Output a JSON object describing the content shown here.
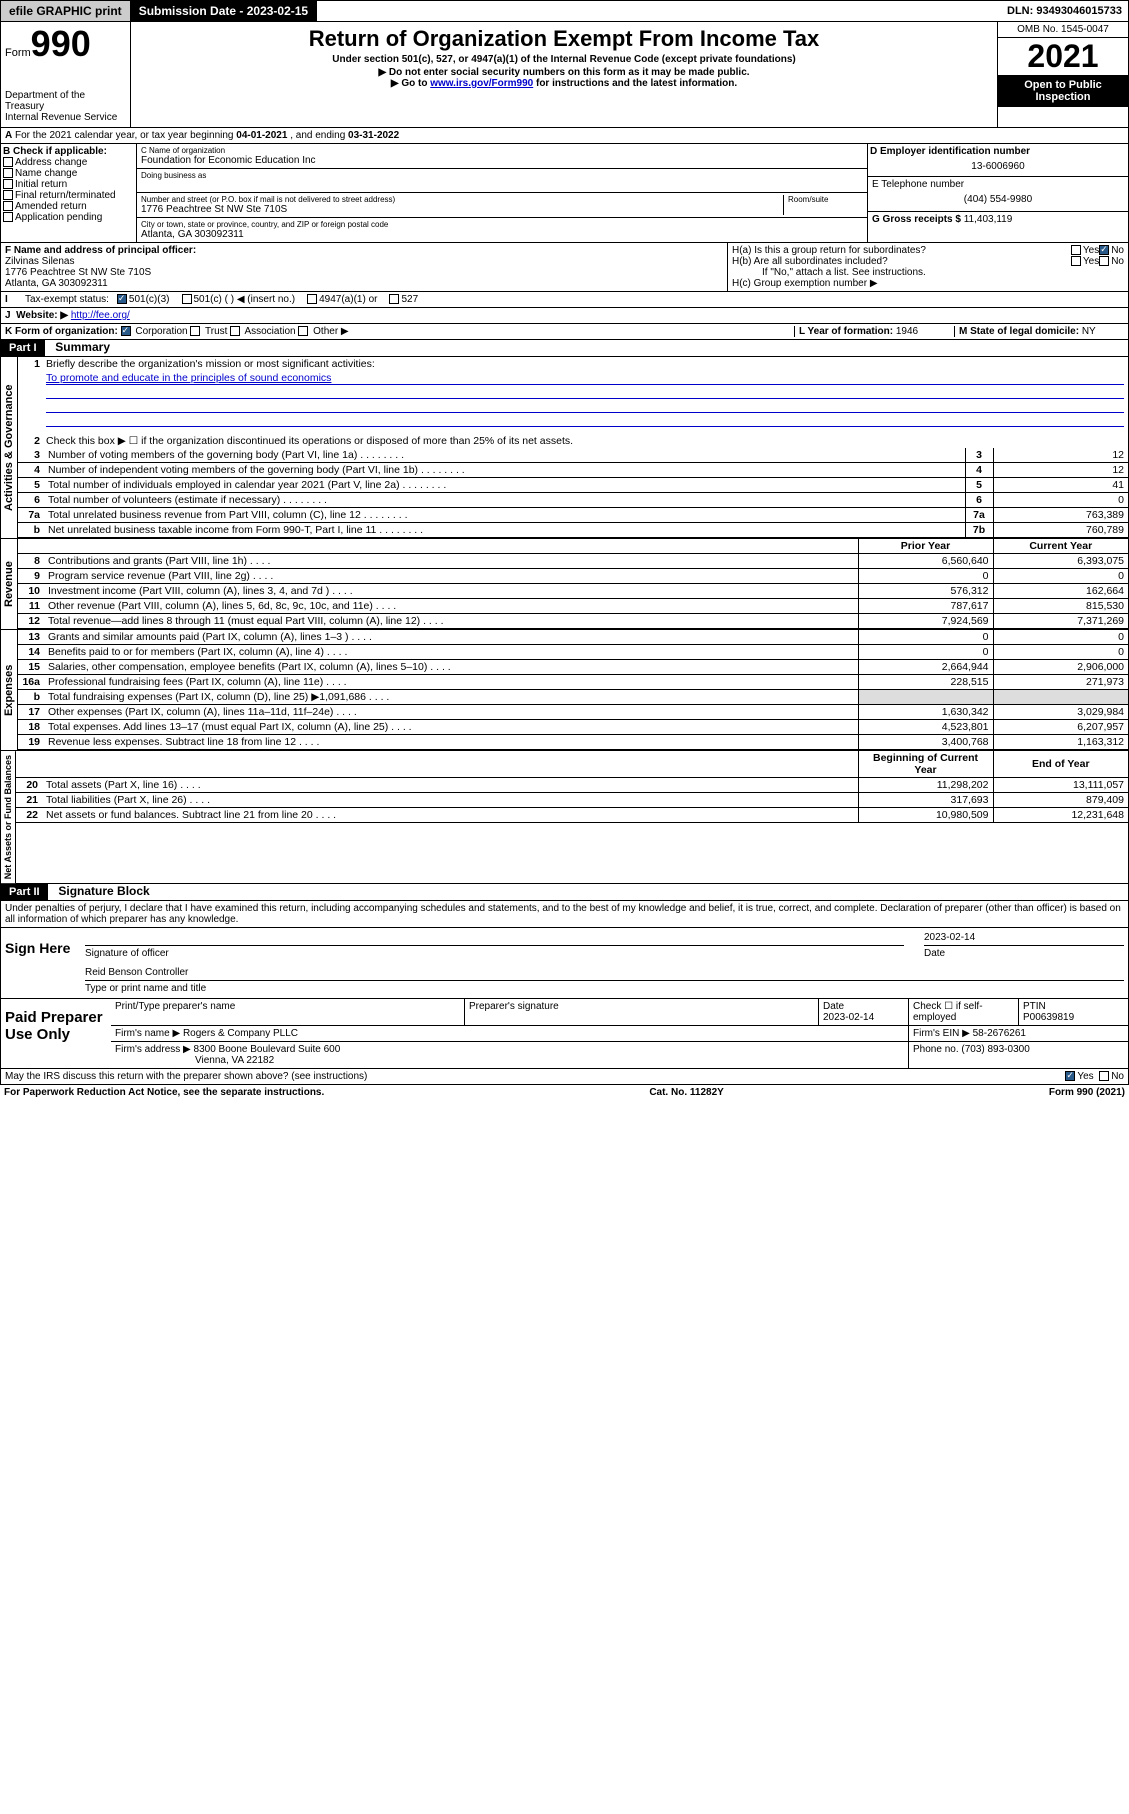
{
  "top": {
    "efile": "efile GRAPHIC print",
    "sub_label": "Submission Date - ",
    "sub_date": "2023-02-15",
    "dln": "DLN: 93493046015733"
  },
  "header": {
    "form_prefix": "Form",
    "form_no": "990",
    "dept": "Department of the Treasury\nInternal Revenue Service",
    "title": "Return of Organization Exempt From Income Tax",
    "sub": "Under section 501(c), 527, or 4947(a)(1) of the Internal Revenue Code (except private foundations)",
    "inst1": "▶ Do not enter social security numbers on this form as it may be made public.",
    "inst2_pre": "▶ Go to ",
    "inst2_link": "www.irs.gov/Form990",
    "inst2_post": " for instructions and the latest information.",
    "omb": "OMB No. 1545-0047",
    "year": "2021",
    "inspect": "Open to Public Inspection"
  },
  "a": {
    "text": "For the 2021 calendar year, or tax year beginning ",
    "begin": "04-01-2021",
    "mid": " , and ending ",
    "end": "03-31-2022"
  },
  "b": {
    "label": "B Check if applicable:",
    "opts": [
      "Address change",
      "Name change",
      "Initial return",
      "Final return/terminated",
      "Amended return",
      "Application pending"
    ]
  },
  "c": {
    "name_label": "C Name of organization",
    "name": "Foundation for Economic Education Inc",
    "dba_label": "Doing business as",
    "street_label": "Number and street (or P.O. box if mail is not delivered to street address)",
    "room_label": "Room/suite",
    "street": "1776 Peachtree St NW Ste 710S",
    "city_label": "City or town, state or province, country, and ZIP or foreign postal code",
    "city": "Atlanta, GA  303092311"
  },
  "d": {
    "label": "D Employer identification number",
    "val": "13-6006960"
  },
  "e": {
    "label": "E Telephone number",
    "val": "(404) 554-9980"
  },
  "f": {
    "label": "F Name and address of principal officer:",
    "name": "Zilvinas Silenas",
    "addr1": "1776 Peachtree St NW Ste 710S",
    "addr2": "Atlanta, GA  303092311"
  },
  "g": {
    "label": "G Gross receipts $ ",
    "val": "11,403,119"
  },
  "h": {
    "a": "H(a)  Is this a group return for subordinates?",
    "b": "H(b)  Are all subordinates included?",
    "b_note": "If \"No,\" attach a list. See instructions.",
    "c": "H(c)  Group exemption number ▶",
    "yes": "Yes",
    "no": "No"
  },
  "i": {
    "label": "Tax-exempt status:",
    "o1": "501(c)(3)",
    "o2": "501(c) (  ) ◀ (insert no.)",
    "o3": "4947(a)(1) or",
    "o4": "527"
  },
  "j": {
    "label": "Website: ▶ ",
    "val": "http://fee.org/"
  },
  "k": {
    "label": "K Form of organization:",
    "o1": "Corporation",
    "o2": "Trust",
    "o3": "Association",
    "o4": "Other ▶"
  },
  "l": {
    "label": "L Year of formation: ",
    "val": "1946"
  },
  "m": {
    "label": "M State of legal domicile: ",
    "val": "NY"
  },
  "part1": {
    "hdr": "Part I",
    "title": "Summary",
    "l1": "Briefly describe the organization's mission or most significant activities:",
    "l1_val": "To promote and educate in the principles of sound economics",
    "l2": "Check this box ▶ ☐  if the organization discontinued its operations or disposed of more than 25% of its net assets.",
    "rows_top": [
      {
        "n": "3",
        "t": "Number of voting members of the governing body (Part VI, line 1a)",
        "box": "3",
        "v": "12"
      },
      {
        "n": "4",
        "t": "Number of independent voting members of the governing body (Part VI, line 1b)",
        "box": "4",
        "v": "12"
      },
      {
        "n": "5",
        "t": "Total number of individuals employed in calendar year 2021 (Part V, line 2a)",
        "box": "5",
        "v": "41"
      },
      {
        "n": "6",
        "t": "Total number of volunteers (estimate if necessary)",
        "box": "6",
        "v": "0"
      },
      {
        "n": "7a",
        "t": "Total unrelated business revenue from Part VIII, column (C), line 12",
        "box": "7a",
        "v": "763,389"
      },
      {
        "n": "b",
        "t": "Net unrelated business taxable income from Form 990-T, Part I, line 11",
        "box": "7b",
        "v": "760,789"
      }
    ],
    "col_prior": "Prior Year",
    "col_current": "Current Year",
    "col_begin": "Beginning of Current Year",
    "col_end": "End of Year",
    "revenue": [
      {
        "n": "8",
        "t": "Contributions and grants (Part VIII, line 1h)",
        "p": "6,560,640",
        "c": "6,393,075"
      },
      {
        "n": "9",
        "t": "Program service revenue (Part VIII, line 2g)",
        "p": "0",
        "c": "0"
      },
      {
        "n": "10",
        "t": "Investment income (Part VIII, column (A), lines 3, 4, and 7d )",
        "p": "576,312",
        "c": "162,664"
      },
      {
        "n": "11",
        "t": "Other revenue (Part VIII, column (A), lines 5, 6d, 8c, 9c, 10c, and 11e)",
        "p": "787,617",
        "c": "815,530"
      },
      {
        "n": "12",
        "t": "Total revenue—add lines 8 through 11 (must equal Part VIII, column (A), line 12)",
        "p": "7,924,569",
        "c": "7,371,269"
      }
    ],
    "expenses": [
      {
        "n": "13",
        "t": "Grants and similar amounts paid (Part IX, column (A), lines 1–3 )",
        "p": "0",
        "c": "0"
      },
      {
        "n": "14",
        "t": "Benefits paid to or for members (Part IX, column (A), line 4)",
        "p": "0",
        "c": "0"
      },
      {
        "n": "15",
        "t": "Salaries, other compensation, employee benefits (Part IX, column (A), lines 5–10)",
        "p": "2,664,944",
        "c": "2,906,000"
      },
      {
        "n": "16a",
        "t": "Professional fundraising fees (Part IX, column (A), line 11e)",
        "p": "228,515",
        "c": "271,973"
      },
      {
        "n": "b",
        "t": "Total fundraising expenses (Part IX, column (D), line 25) ▶1,091,686",
        "p": "",
        "c": ""
      },
      {
        "n": "17",
        "t": "Other expenses (Part IX, column (A), lines 11a–11d, 11f–24e)",
        "p": "1,630,342",
        "c": "3,029,984"
      },
      {
        "n": "18",
        "t": "Total expenses. Add lines 13–17 (must equal Part IX, column (A), line 25)",
        "p": "4,523,801",
        "c": "6,207,957"
      },
      {
        "n": "19",
        "t": "Revenue less expenses. Subtract line 18 from line 12",
        "p": "3,400,768",
        "c": "1,163,312"
      }
    ],
    "net": [
      {
        "n": "20",
        "t": "Total assets (Part X, line 16)",
        "p": "11,298,202",
        "c": "13,111,057"
      },
      {
        "n": "21",
        "t": "Total liabilities (Part X, line 26)",
        "p": "317,693",
        "c": "879,409"
      },
      {
        "n": "22",
        "t": "Net assets or fund balances. Subtract line 21 from line 20",
        "p": "10,980,509",
        "c": "12,231,648"
      }
    ],
    "vlabels": {
      "gov": "Activities & Governance",
      "rev": "Revenue",
      "exp": "Expenses",
      "net": "Net Assets or Fund Balances"
    }
  },
  "part2": {
    "hdr": "Part II",
    "title": "Signature Block",
    "decl": "Under penalties of perjury, I declare that I have examined this return, including accompanying schedules and statements, and to the best of my knowledge and belief, it is true, correct, and complete. Declaration of preparer (other than officer) is based on all information of which preparer has any knowledge.",
    "sign_here": "Sign Here",
    "sig_officer": "Signature of officer",
    "sig_date": "2023-02-14",
    "date_lbl": "Date",
    "officer_name": "Reid Benson  Controller",
    "type_name": "Type or print name and title",
    "paid": "Paid Preparer Use Only",
    "prep_name_lbl": "Print/Type preparer's name",
    "prep_sig_lbl": "Preparer's signature",
    "prep_date_lbl": "Date",
    "prep_date": "2023-02-14",
    "self_emp": "Check ☐ if self-employed",
    "ptin_lbl": "PTIN",
    "ptin": "P00639819",
    "firm_name_lbl": "Firm's name   ▶ ",
    "firm_name": "Rogers & Company PLLC",
    "firm_ein_lbl": "Firm's EIN ▶ ",
    "firm_ein": "58-2676261",
    "firm_addr_lbl": "Firm's address ▶ ",
    "firm_addr1": "8300 Boone Boulevard Suite 600",
    "firm_addr2": "Vienna, VA  22182",
    "phone_lbl": "Phone no. ",
    "phone": "(703) 893-0300",
    "may_irs": "May the IRS discuss this return with the preparer shown above? (see instructions)",
    "yes": "Yes",
    "no": "No"
  },
  "footer": {
    "left": "For Paperwork Reduction Act Notice, see the separate instructions.",
    "mid": "Cat. No. 11282Y",
    "right": "Form 990 (2021)"
  }
}
